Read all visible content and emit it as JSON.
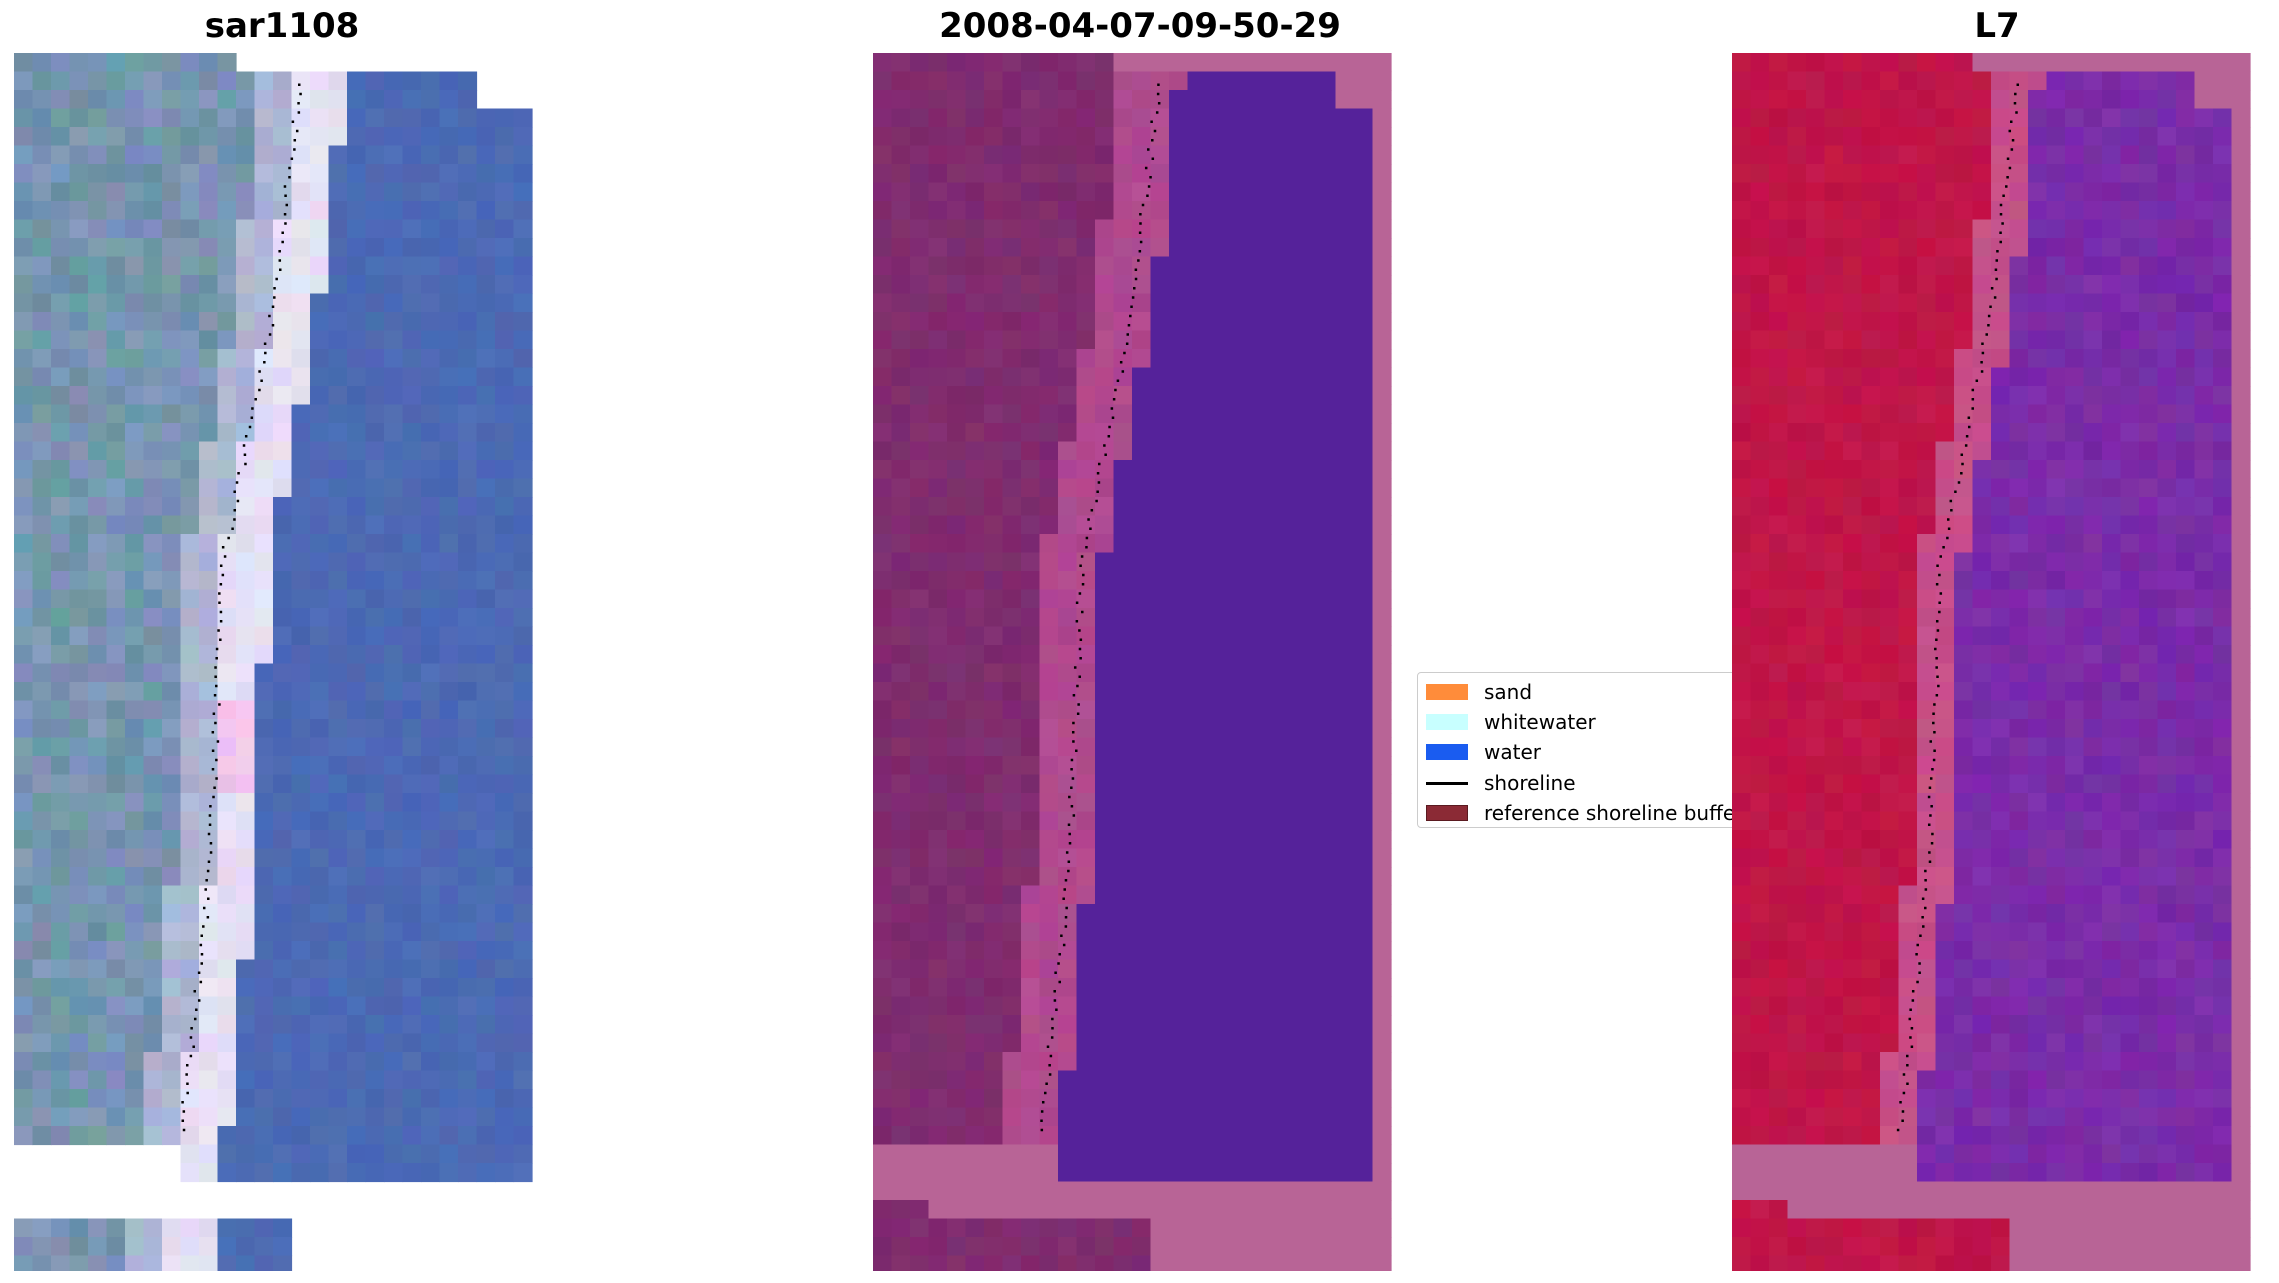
{
  "figure": {
    "panels": [
      {
        "id": "sar",
        "title": "sar1108"
      },
      {
        "id": "classified",
        "title": "2008-04-07-09-50-29"
      },
      {
        "id": "l7",
        "title": "L7"
      }
    ]
  },
  "legend": {
    "items": [
      {
        "label": "sand",
        "color": "#ff8c3a",
        "kind": "patch"
      },
      {
        "label": "whitewater",
        "color": "#c8ffff",
        "kind": "patch"
      },
      {
        "label": "water",
        "color": "#1a5cf0",
        "kind": "patch"
      },
      {
        "label": "shoreline",
        "color": "#000000",
        "kind": "line"
      },
      {
        "label": "reference shoreline buffer",
        "color": "#8b2a35",
        "kind": "patch"
      }
    ]
  },
  "colors": {
    "sar_land": "#7f93b8",
    "sar_land_green": "#6f96a8",
    "sar_water": "#4c6ab4",
    "sar_surf": "#e6e0f4",
    "sar_surf_pink": "#f2c6ee",
    "class_land": "#7f2c6e",
    "class_beach": "#b04a8f",
    "class_water": "#55229a",
    "buffer": "#b86496",
    "l7_land": "#c01548",
    "l7_beach": "#c65089",
    "l7_water": "#7a2ca8",
    "shoreline": "#000000"
  }
}
